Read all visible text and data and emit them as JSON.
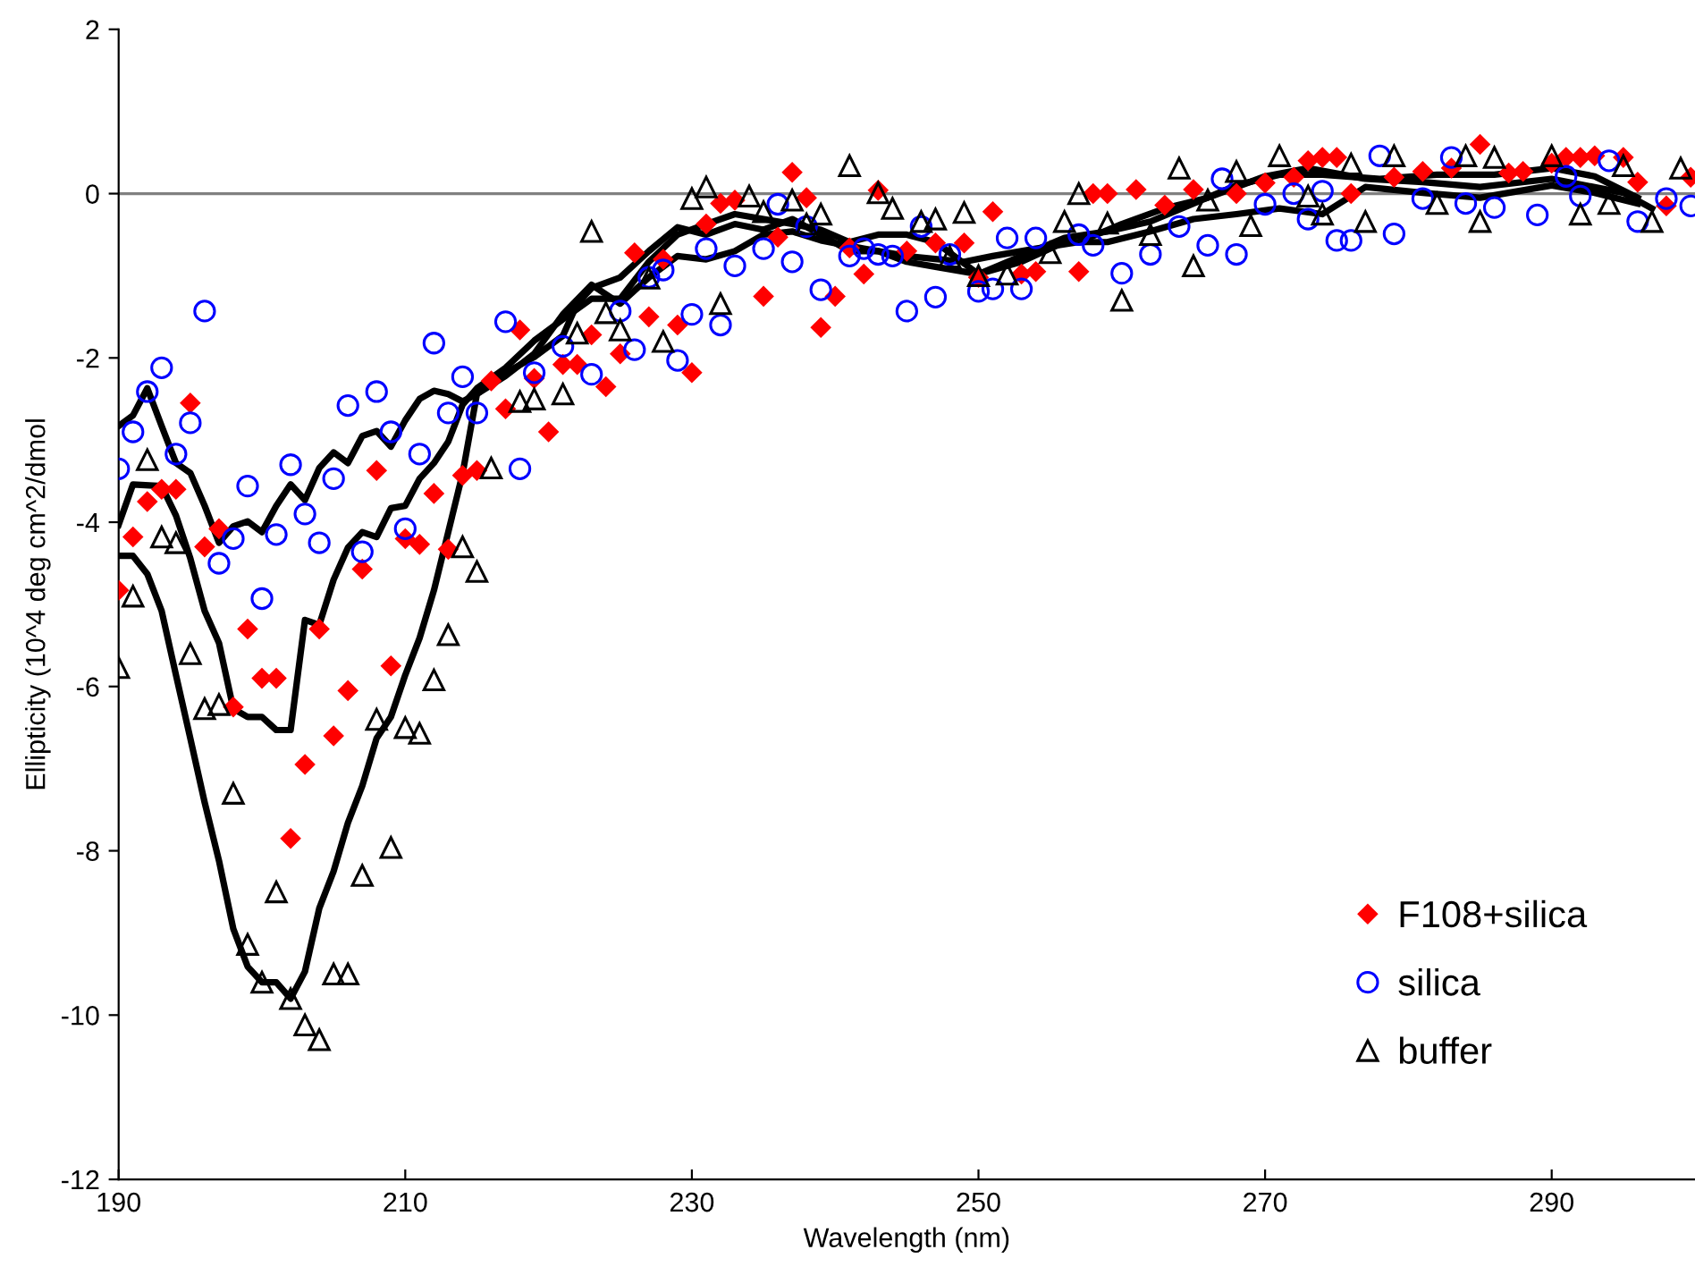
{
  "chart_data": {
    "type": "scatter",
    "xlabel": "Wavelength (nm)",
    "ylabel": "Ellipticity (10^4 deg cm^2/dmol",
    "xlim": [
      190,
      300
    ],
    "xticks": [
      190,
      210,
      230,
      250,
      270,
      290
    ],
    "ylim": [
      -12,
      2
    ],
    "yticks": [
      -12,
      -10,
      -8,
      -6,
      -4,
      -2,
      0,
      2
    ],
    "grid": false,
    "legend": "bottom right",
    "ref_lines": [
      {
        "axis": "y",
        "value": 0,
        "color": "#808080"
      }
    ],
    "series": [
      {
        "name": "F108+silica",
        "color": "#ff0000",
        "marker": "diamond",
        "x": [
          190,
          191,
          192,
          193,
          194,
          195,
          196,
          197,
          198,
          199,
          200,
          201,
          202,
          203,
          204,
          205,
          206,
          207,
          208,
          209,
          210,
          211,
          212,
          213,
          214,
          215,
          216,
          217,
          218,
          219,
          220,
          221,
          222,
          223,
          224,
          225,
          226,
          227,
          228,
          229,
          230,
          231,
          232,
          233,
          235,
          236,
          237,
          238,
          239,
          240,
          241,
          242,
          243,
          245,
          247,
          249,
          250,
          251,
          253,
          254,
          257,
          258,
          259,
          261,
          263,
          265,
          268,
          270,
          272,
          273,
          274,
          275,
          276,
          279,
          281,
          283,
          285,
          287,
          288,
          290,
          291,
          292,
          293,
          295,
          296,
          298,
          299.7
        ],
        "values": [
          -4.83,
          -4.18,
          -3.75,
          -3.6,
          -3.6,
          -2.55,
          -4.3,
          -4.08,
          -6.25,
          -5.3,
          -5.9,
          -5.9,
          -7.85,
          -6.95,
          -5.3,
          -6.6,
          -6.05,
          -4.57,
          -3.37,
          -5.75,
          -4.2,
          -4.27,
          -3.65,
          -4.33,
          -3.43,
          -3.37,
          -2.28,
          -2.62,
          -1.66,
          -2.25,
          -2.9,
          -2.08,
          -2.08,
          -1.72,
          -2.35,
          -1.95,
          -0.72,
          -1.5,
          -0.8,
          -1.6,
          -2.18,
          -0.37,
          -0.12,
          -0.08,
          -1.25,
          -0.53,
          0.26,
          -0.05,
          -1.63,
          -1.25,
          -0.66,
          -0.98,
          0.04,
          -0.7,
          -0.6,
          -0.6,
          -1.02,
          -0.22,
          -0.98,
          -0.95,
          -0.95,
          0,
          0,
          0.05,
          -0.14,
          0.05,
          0,
          0.13,
          0.2,
          0.4,
          0.44,
          0.44,
          0,
          0.2,
          0.27,
          0.31,
          0.6,
          0.25,
          0.27,
          0.37,
          0.44,
          0.44,
          0.46,
          0.44,
          0.14,
          -0.15,
          0.2
        ]
      },
      {
        "name": "silica",
        "color": "#0000ff",
        "marker": "circle",
        "x": [
          190,
          191,
          192,
          193,
          194,
          195,
          196,
          197,
          198,
          199,
          200,
          201,
          202,
          203,
          204,
          205,
          206,
          207,
          208,
          209,
          210,
          211,
          212,
          213,
          214,
          215,
          217,
          218,
          219,
          221,
          223,
          225,
          226,
          227,
          228,
          229,
          230,
          231,
          232,
          233,
          235,
          236,
          237,
          238,
          239,
          241,
          242,
          243,
          244,
          245,
          246,
          247,
          248,
          250,
          251,
          252,
          253,
          254,
          257,
          258,
          260,
          262,
          264,
          266,
          267,
          268,
          270,
          272,
          273,
          274,
          275,
          276,
          278,
          279,
          281,
          283,
          284,
          286,
          289,
          291,
          292,
          294,
          296,
          298,
          299.7
        ],
        "values": [
          -3.35,
          -2.9,
          -2.41,
          -2.12,
          -3.17,
          -2.79,
          -1.43,
          -4.5,
          -4.2,
          -3.56,
          -4.93,
          -4.15,
          -3.3,
          -3.9,
          -4.25,
          -3.47,
          -2.58,
          -4.36,
          -2.41,
          -2.9,
          -4.08,
          -3.17,
          -1.82,
          -2.67,
          -2.23,
          -2.67,
          -1.56,
          -3.35,
          -2.18,
          -1.86,
          -2.2,
          -1.43,
          -1.9,
          -1.02,
          -0.93,
          -2.03,
          -1.47,
          -0.67,
          -1.6,
          -0.88,
          -0.67,
          -0.13,
          -0.83,
          -0.4,
          -1.17,
          -0.76,
          -0.67,
          -0.74,
          -0.76,
          -1.43,
          -0.4,
          -1.26,
          -0.74,
          -1.19,
          -1.16,
          -0.54,
          -1.16,
          -0.54,
          -0.5,
          -0.63,
          -0.97,
          -0.74,
          -0.4,
          -0.63,
          0.18,
          -0.74,
          -0.13,
          0,
          -0.31,
          0.03,
          -0.57,
          -0.57,
          0.46,
          -0.49,
          -0.06,
          0.44,
          -0.12,
          -0.17,
          -0.26,
          0.21,
          -0.03,
          0.4,
          -0.34,
          -0.06,
          -0.15
        ]
      },
      {
        "name": "buffer",
        "color": "#000000",
        "marker": "triangle",
        "x": [
          190,
          191,
          192,
          193,
          194,
          195,
          196,
          197,
          198,
          199,
          200,
          201,
          202,
          203,
          204,
          205,
          206,
          207,
          208,
          209,
          210,
          211,
          212,
          213,
          214,
          215,
          216,
          218,
          219,
          221,
          222,
          223,
          224,
          225,
          227,
          228,
          230,
          231,
          232,
          234,
          235,
          237,
          238,
          239,
          241,
          243,
          244,
          246,
          247,
          248,
          249,
          250,
          252,
          255,
          256,
          257,
          259,
          260,
          262,
          264,
          265,
          266,
          268,
          269,
          271,
          273,
          274,
          276,
          277,
          279,
          282,
          284,
          285,
          286,
          290,
          292,
          294,
          295,
          297,
          299
        ],
        "values": [
          -5.77,
          -4.9,
          -3.24,
          -4.18,
          -4.25,
          -5.6,
          -6.27,
          -6.22,
          -7.3,
          -9.14,
          -9.6,
          -8.5,
          -9.8,
          -10.12,
          -10.3,
          -9.5,
          -9.5,
          -8.3,
          -6.4,
          -7.96,
          -6.5,
          -6.57,
          -5.92,
          -5.37,
          -4.3,
          -4.6,
          -3.34,
          -2.53,
          -2.5,
          -2.44,
          -1.7,
          -0.46,
          -1.45,
          -1.66,
          -1.03,
          -1.8,
          -0.06,
          0.08,
          -1.34,
          -0.03,
          -0.22,
          -0.08,
          -0.37,
          -0.25,
          0.34,
          0.01,
          -0.18,
          -0.34,
          -0.31,
          -0.77,
          -0.23,
          -1,
          -0.98,
          -0.72,
          -0.34,
          0,
          -0.36,
          -1.3,
          -0.5,
          0.31,
          -0.88,
          -0.08,
          0.27,
          -0.39,
          0.46,
          -0.03,
          -0.25,
          0.36,
          -0.34,
          0.46,
          -0.12,
          0.46,
          -0.34,
          0.44,
          0.46,
          -0.25,
          -0.12,
          0.34,
          -0.34,
          0.31
        ]
      },
      {
        "type": "line",
        "color": "#000000",
        "line_style": "solid",
        "x": [
          190,
          191,
          192,
          193,
          194,
          195,
          196,
          197,
          198,
          199,
          200,
          201,
          202,
          203,
          204,
          205,
          206,
          207,
          208,
          209,
          210,
          211,
          212,
          213,
          214,
          215,
          217,
          219,
          221,
          223,
          225,
          227,
          229,
          231,
          233,
          235,
          237,
          239,
          242,
          245,
          249,
          251,
          254,
          257,
          260,
          263,
          266,
          270,
          273,
          277,
          281,
          285,
          290,
          295,
          297
        ],
        "values": [
          -2.83,
          -2.7,
          -2.37,
          -2.83,
          -3.28,
          -3.4,
          -3.8,
          -4.25,
          -4.05,
          -3.99,
          -4.12,
          -3.8,
          -3.54,
          -3.73,
          -3.34,
          -3.15,
          -3.28,
          -2.95,
          -2.89,
          -3.08,
          -2.76,
          -2.5,
          -2.4,
          -2.44,
          -2.53,
          -2.44,
          -2.22,
          -1.95,
          -1.47,
          -1.11,
          -1.34,
          -1.02,
          -0.76,
          -0.8,
          -0.7,
          -0.5,
          -0.46,
          -0.57,
          -0.67,
          -0.76,
          -0.83,
          -0.76,
          -0.67,
          -0.59,
          -0.37,
          -0.18,
          -0.05,
          0.21,
          0.31,
          0.18,
          0.14,
          0.08,
          0.18,
          0.01,
          -0.18
        ]
      },
      {
        "type": "line",
        "color": "#000000",
        "line_style": "solid",
        "x": [
          190,
          191,
          193,
          194,
          195,
          196,
          197,
          198,
          199,
          200,
          201,
          202,
          203,
          204,
          205,
          206,
          207,
          208,
          209,
          210,
          211,
          212,
          213,
          214,
          215,
          217,
          219,
          221,
          223,
          225,
          227,
          229,
          231,
          233,
          235,
          237,
          239,
          241,
          243,
          245,
          247,
          250,
          253,
          256,
          259,
          262,
          265,
          268,
          271,
          274,
          278,
          282,
          286,
          290,
          293,
          296
        ],
        "values": [
          -4.03,
          -3.54,
          -3.56,
          -3.92,
          -4.44,
          -5.08,
          -5.47,
          -6.27,
          -6.37,
          -6.37,
          -6.53,
          -6.53,
          -5.19,
          -5.25,
          -4.7,
          -4.31,
          -4.12,
          -4.18,
          -3.83,
          -3.8,
          -3.47,
          -3.28,
          -3.02,
          -2.57,
          -2.37,
          -2.12,
          -1.79,
          -1.53,
          -1.28,
          -1.28,
          -0.83,
          -0.5,
          -0.37,
          -0.25,
          -0.31,
          -0.37,
          -0.44,
          -0.59,
          -0.5,
          -0.5,
          -0.59,
          -0.98,
          -0.76,
          -0.54,
          -0.46,
          -0.34,
          -0.12,
          0.1,
          0.23,
          0.23,
          0.18,
          0.23,
          0.23,
          0.31,
          0.21,
          -0.05
        ]
      },
      {
        "type": "line",
        "color": "#000000",
        "line_style": "solid",
        "x": [
          190,
          191,
          192,
          193,
          194,
          195,
          196,
          197,
          198,
          199,
          200,
          201,
          202,
          203,
          204,
          205,
          206,
          207,
          208,
          209,
          210,
          211,
          212,
          213,
          214,
          215,
          217,
          219,
          221,
          222,
          223,
          225,
          227,
          229,
          231,
          233,
          235,
          237,
          239,
          241,
          243,
          245,
          247,
          250,
          253,
          256,
          259,
          262,
          265,
          268,
          271,
          274,
          277,
          281,
          285,
          290,
          293,
          296
        ],
        "values": [
          -4.41,
          -4.41,
          -4.63,
          -5.08,
          -5.86,
          -6.63,
          -7.41,
          -8.12,
          -8.95,
          -9.41,
          -9.6,
          -9.6,
          -9.8,
          -9.47,
          -8.7,
          -8.25,
          -7.66,
          -7.21,
          -6.63,
          -6.37,
          -5.86,
          -5.41,
          -4.83,
          -4.12,
          -3.41,
          -2.44,
          -2.18,
          -1.99,
          -1.73,
          -1.34,
          -1.15,
          -1.02,
          -0.7,
          -0.41,
          -0.5,
          -0.37,
          -0.44,
          -0.31,
          -0.5,
          -0.7,
          -0.7,
          -0.83,
          -0.89,
          -0.98,
          -0.83,
          -0.59,
          -0.59,
          -0.46,
          -0.31,
          -0.25,
          -0.18,
          -0.25,
          0.08,
          0.01,
          -0.05,
          0.1,
          0.01,
          -0.12
        ]
      }
    ]
  }
}
